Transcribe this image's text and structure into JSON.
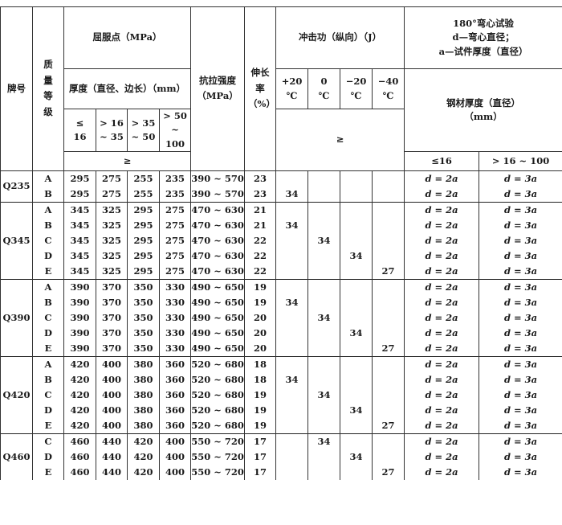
{
  "header": {
    "brand": "牌号",
    "grade": "质量等级",
    "yield": "屈服点（MPa）",
    "thickness": "厚度（直径、边长）（mm）",
    "thk_cols": [
      "≤ 16",
      "> 16 ~ 35",
      "> 35 ~ 50",
      "> 50 ~ 100"
    ],
    "ge": "≥",
    "tensile": "抗拉强度（MPa）",
    "elong": "伸长率（%）",
    "impact": "冲击功（纵向）（J）",
    "temps": [
      "+20 ℃",
      "0 ℃",
      "−20 ℃",
      "−40 ℃"
    ],
    "bend_title": "180°弯心试验",
    "bend_d": "d—弯心直径；",
    "bend_a": "a—试件厚度（直径）",
    "steel_thk": "钢材厚度（直径）（mm）",
    "bend_cols": [
      "≤16",
      "> 16 ~ 100"
    ]
  },
  "groups": [
    {
      "brand": "Q235",
      "rows": [
        {
          "g": "A",
          "y": [
            "295",
            "275",
            "255",
            "235"
          ],
          "ts": "390 ~ 570",
          "el": "23",
          "imp": [
            "",
            "",
            "",
            ""
          ],
          "b": [
            "d = 2a",
            "d = 3a"
          ]
        },
        {
          "g": "B",
          "y": [
            "295",
            "275",
            "255",
            "235"
          ],
          "ts": "390 ~ 570",
          "el": "23",
          "imp": [
            "34",
            "",
            "",
            ""
          ],
          "b": [
            "d = 2a",
            "d = 3a"
          ]
        }
      ]
    },
    {
      "brand": "Q345",
      "rows": [
        {
          "g": "A",
          "y": [
            "345",
            "325",
            "295",
            "275"
          ],
          "ts": "470 ~ 630",
          "el": "21",
          "imp": [
            "",
            "",
            "",
            ""
          ],
          "b": [
            "d = 2a",
            "d = 3a"
          ]
        },
        {
          "g": "B",
          "y": [
            "345",
            "325",
            "295",
            "275"
          ],
          "ts": "470 ~ 630",
          "el": "21",
          "imp": [
            "34",
            "",
            "",
            ""
          ],
          "b": [
            "d = 2a",
            "d = 3a"
          ]
        },
        {
          "g": "C",
          "y": [
            "345",
            "325",
            "295",
            "275"
          ],
          "ts": "470 ~ 630",
          "el": "22",
          "imp": [
            "",
            "34",
            "",
            ""
          ],
          "b": [
            "d = 2a",
            "d = 3a"
          ]
        },
        {
          "g": "D",
          "y": [
            "345",
            "325",
            "295",
            "275"
          ],
          "ts": "470 ~ 630",
          "el": "22",
          "imp": [
            "",
            "",
            "34",
            ""
          ],
          "b": [
            "d = 2a",
            "d = 3a"
          ]
        },
        {
          "g": "E",
          "y": [
            "345",
            "325",
            "295",
            "275"
          ],
          "ts": "470 ~ 630",
          "el": "22",
          "imp": [
            "",
            "",
            "",
            "27"
          ],
          "b": [
            "d = 2a",
            "d = 3a"
          ]
        }
      ]
    },
    {
      "brand": "Q390",
      "rows": [
        {
          "g": "A",
          "y": [
            "390",
            "370",
            "350",
            "330"
          ],
          "ts": "490 ~ 650",
          "el": "19",
          "imp": [
            "",
            "",
            "",
            ""
          ],
          "b": [
            "d = 2a",
            "d = 3a"
          ]
        },
        {
          "g": "B",
          "y": [
            "390",
            "370",
            "350",
            "330"
          ],
          "ts": "490 ~ 650",
          "el": "19",
          "imp": [
            "34",
            "",
            "",
            ""
          ],
          "b": [
            "d = 2a",
            "d = 3a"
          ]
        },
        {
          "g": "C",
          "y": [
            "390",
            "370",
            "350",
            "330"
          ],
          "ts": "490 ~ 650",
          "el": "20",
          "imp": [
            "",
            "34",
            "",
            ""
          ],
          "b": [
            "d = 2a",
            "d = 3a"
          ]
        },
        {
          "g": "D",
          "y": [
            "390",
            "370",
            "350",
            "330"
          ],
          "ts": "490 ~ 650",
          "el": "20",
          "imp": [
            "",
            "",
            "34",
            ""
          ],
          "b": [
            "d = 2a",
            "d = 3a"
          ]
        },
        {
          "g": "E",
          "y": [
            "390",
            "370",
            "350",
            "330"
          ],
          "ts": "490 ~ 650",
          "el": "20",
          "imp": [
            "",
            "",
            "",
            "27"
          ],
          "b": [
            "d = 2a",
            "d = 3a"
          ]
        }
      ]
    },
    {
      "brand": "Q420",
      "rows": [
        {
          "g": "A",
          "y": [
            "420",
            "400",
            "380",
            "360"
          ],
          "ts": "520 ~ 680",
          "el": "18",
          "imp": [
            "",
            "",
            "",
            ""
          ],
          "b": [
            "d = 2a",
            "d = 3a"
          ]
        },
        {
          "g": "B",
          "y": [
            "420",
            "400",
            "380",
            "360"
          ],
          "ts": "520 ~ 680",
          "el": "18",
          "imp": [
            "34",
            "",
            "",
            ""
          ],
          "b": [
            "d = 2a",
            "d = 3a"
          ]
        },
        {
          "g": "C",
          "y": [
            "420",
            "400",
            "380",
            "360"
          ],
          "ts": "520 ~ 680",
          "el": "19",
          "imp": [
            "",
            "34",
            "",
            ""
          ],
          "b": [
            "d = 2a",
            "d = 3a"
          ]
        },
        {
          "g": "D",
          "y": [
            "420",
            "400",
            "380",
            "360"
          ],
          "ts": "520 ~ 680",
          "el": "19",
          "imp": [
            "",
            "",
            "34",
            ""
          ],
          "b": [
            "d = 2a",
            "d = 3a"
          ]
        },
        {
          "g": "E",
          "y": [
            "420",
            "400",
            "380",
            "360"
          ],
          "ts": "520 ~ 680",
          "el": "19",
          "imp": [
            "",
            "",
            "",
            "27"
          ],
          "b": [
            "d = 2a",
            "d = 3a"
          ]
        }
      ]
    },
    {
      "brand": "Q460",
      "rows": [
        {
          "g": "C",
          "y": [
            "460",
            "440",
            "420",
            "400"
          ],
          "ts": "550 ~ 720",
          "el": "17",
          "imp": [
            "",
            "34",
            "",
            ""
          ],
          "b": [
            "d = 2a",
            "d = 3a"
          ]
        },
        {
          "g": "D",
          "y": [
            "460",
            "440",
            "420",
            "400"
          ],
          "ts": "550 ~ 720",
          "el": "17",
          "imp": [
            "",
            "",
            "34",
            ""
          ],
          "b": [
            "d = 2a",
            "d = 3a"
          ]
        },
        {
          "g": "E",
          "y": [
            "460",
            "440",
            "420",
            "400"
          ],
          "ts": "550 ~ 720",
          "el": "17",
          "imp": [
            "",
            "",
            "",
            "27"
          ],
          "b": [
            "d = 2a",
            "d = 3a"
          ]
        }
      ]
    }
  ]
}
